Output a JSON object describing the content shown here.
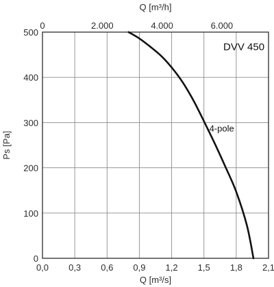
{
  "chart_data": {
    "type": "line",
    "title": "DVV 450",
    "xlabel": "Q [m³/s]",
    "ylabel": "Ps [Pa]",
    "x2label": "Q [m³/h]",
    "xlim": [
      0,
      2.1
    ],
    "ylim": [
      0,
      500
    ],
    "x2lim": [
      0,
      7560
    ],
    "grid": true,
    "x_ticks": [
      0,
      0.3,
      0.6,
      0.9,
      1.2,
      1.5,
      1.8,
      2.1
    ],
    "x_tick_labels": [
      "0,0",
      "0,3",
      "0,6",
      "0,9",
      "1,2",
      "1,5",
      "1,8",
      "2,1"
    ],
    "y_ticks": [
      0,
      100,
      200,
      300,
      400,
      500
    ],
    "y_tick_labels": [
      "0",
      "100",
      "200",
      "300",
      "400",
      "500"
    ],
    "x2_ticks": [
      0,
      2000,
      4000,
      6000
    ],
    "x2_tick_labels": [
      "0",
      "2.000",
      "4.000",
      "6.000"
    ],
    "series": [
      {
        "name": "4-pole",
        "x": [
          0.8,
          0.9,
          1.0,
          1.1,
          1.2,
          1.3,
          1.4,
          1.5,
          1.6,
          1.7,
          1.8,
          1.9,
          1.96
        ],
        "y": [
          500,
          486,
          468,
          448,
          422,
          390,
          350,
          303,
          254,
          202,
          147,
          72,
          0
        ]
      }
    ],
    "annotations": [
      {
        "text": "DVV 450",
        "x": 1.68,
        "y": 460
      },
      {
        "text": "4-pole",
        "x": 1.55,
        "y": 280
      }
    ]
  }
}
